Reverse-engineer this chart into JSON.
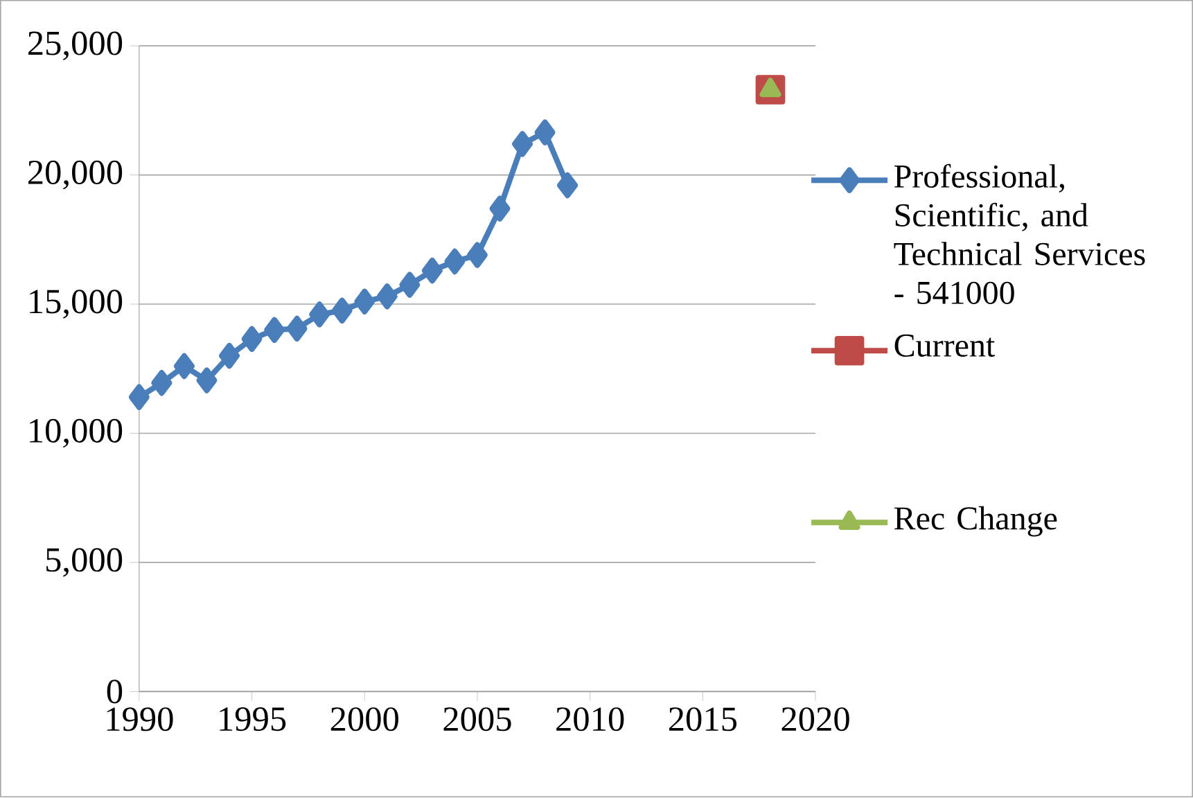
{
  "chart_data": {
    "type": "line",
    "xlim": [
      1990,
      2020
    ],
    "ylim": [
      0,
      25000
    ],
    "xticks": [
      1990,
      1995,
      2000,
      2005,
      2010,
      2015,
      2020
    ],
    "yticks": [
      0,
      {
        "value": 5000,
        "label": "5,000"
      },
      {
        "value": 10000,
        "label": "10,000"
      },
      {
        "value": 15000,
        "label": "15,000"
      },
      {
        "value": 20000,
        "label": "20,000"
      },
      {
        "value": 25000,
        "label": "25,000"
      }
    ],
    "grid": "y",
    "legend": "right",
    "line_style": "solid",
    "series": [
      {
        "name": "Professional, Scientific, and Technical Services - 541000",
        "color": "#4a7ebb",
        "marker": "diamond",
        "x": [
          1990,
          1991,
          1992,
          1993,
          1994,
          1995,
          1996,
          1997,
          1998,
          1999,
          2000,
          2001,
          2002,
          2003,
          2004,
          2005,
          2006,
          2007,
          2008,
          2009
        ],
        "values": [
          11400,
          11950,
          12600,
          12050,
          13000,
          13650,
          14000,
          14050,
          14600,
          14750,
          15100,
          15300,
          15750,
          16300,
          16650,
          16900,
          18700,
          21200,
          21650,
          19600
        ]
      },
      {
        "name": "Current",
        "color": "#be4b48",
        "marker": "square",
        "x": [
          2018
        ],
        "values": [
          23300
        ]
      },
      {
        "name": "Rec Change",
        "color": "#98b954",
        "marker": "triangle",
        "x": [
          2018
        ],
        "values": [
          23300
        ]
      }
    ]
  }
}
